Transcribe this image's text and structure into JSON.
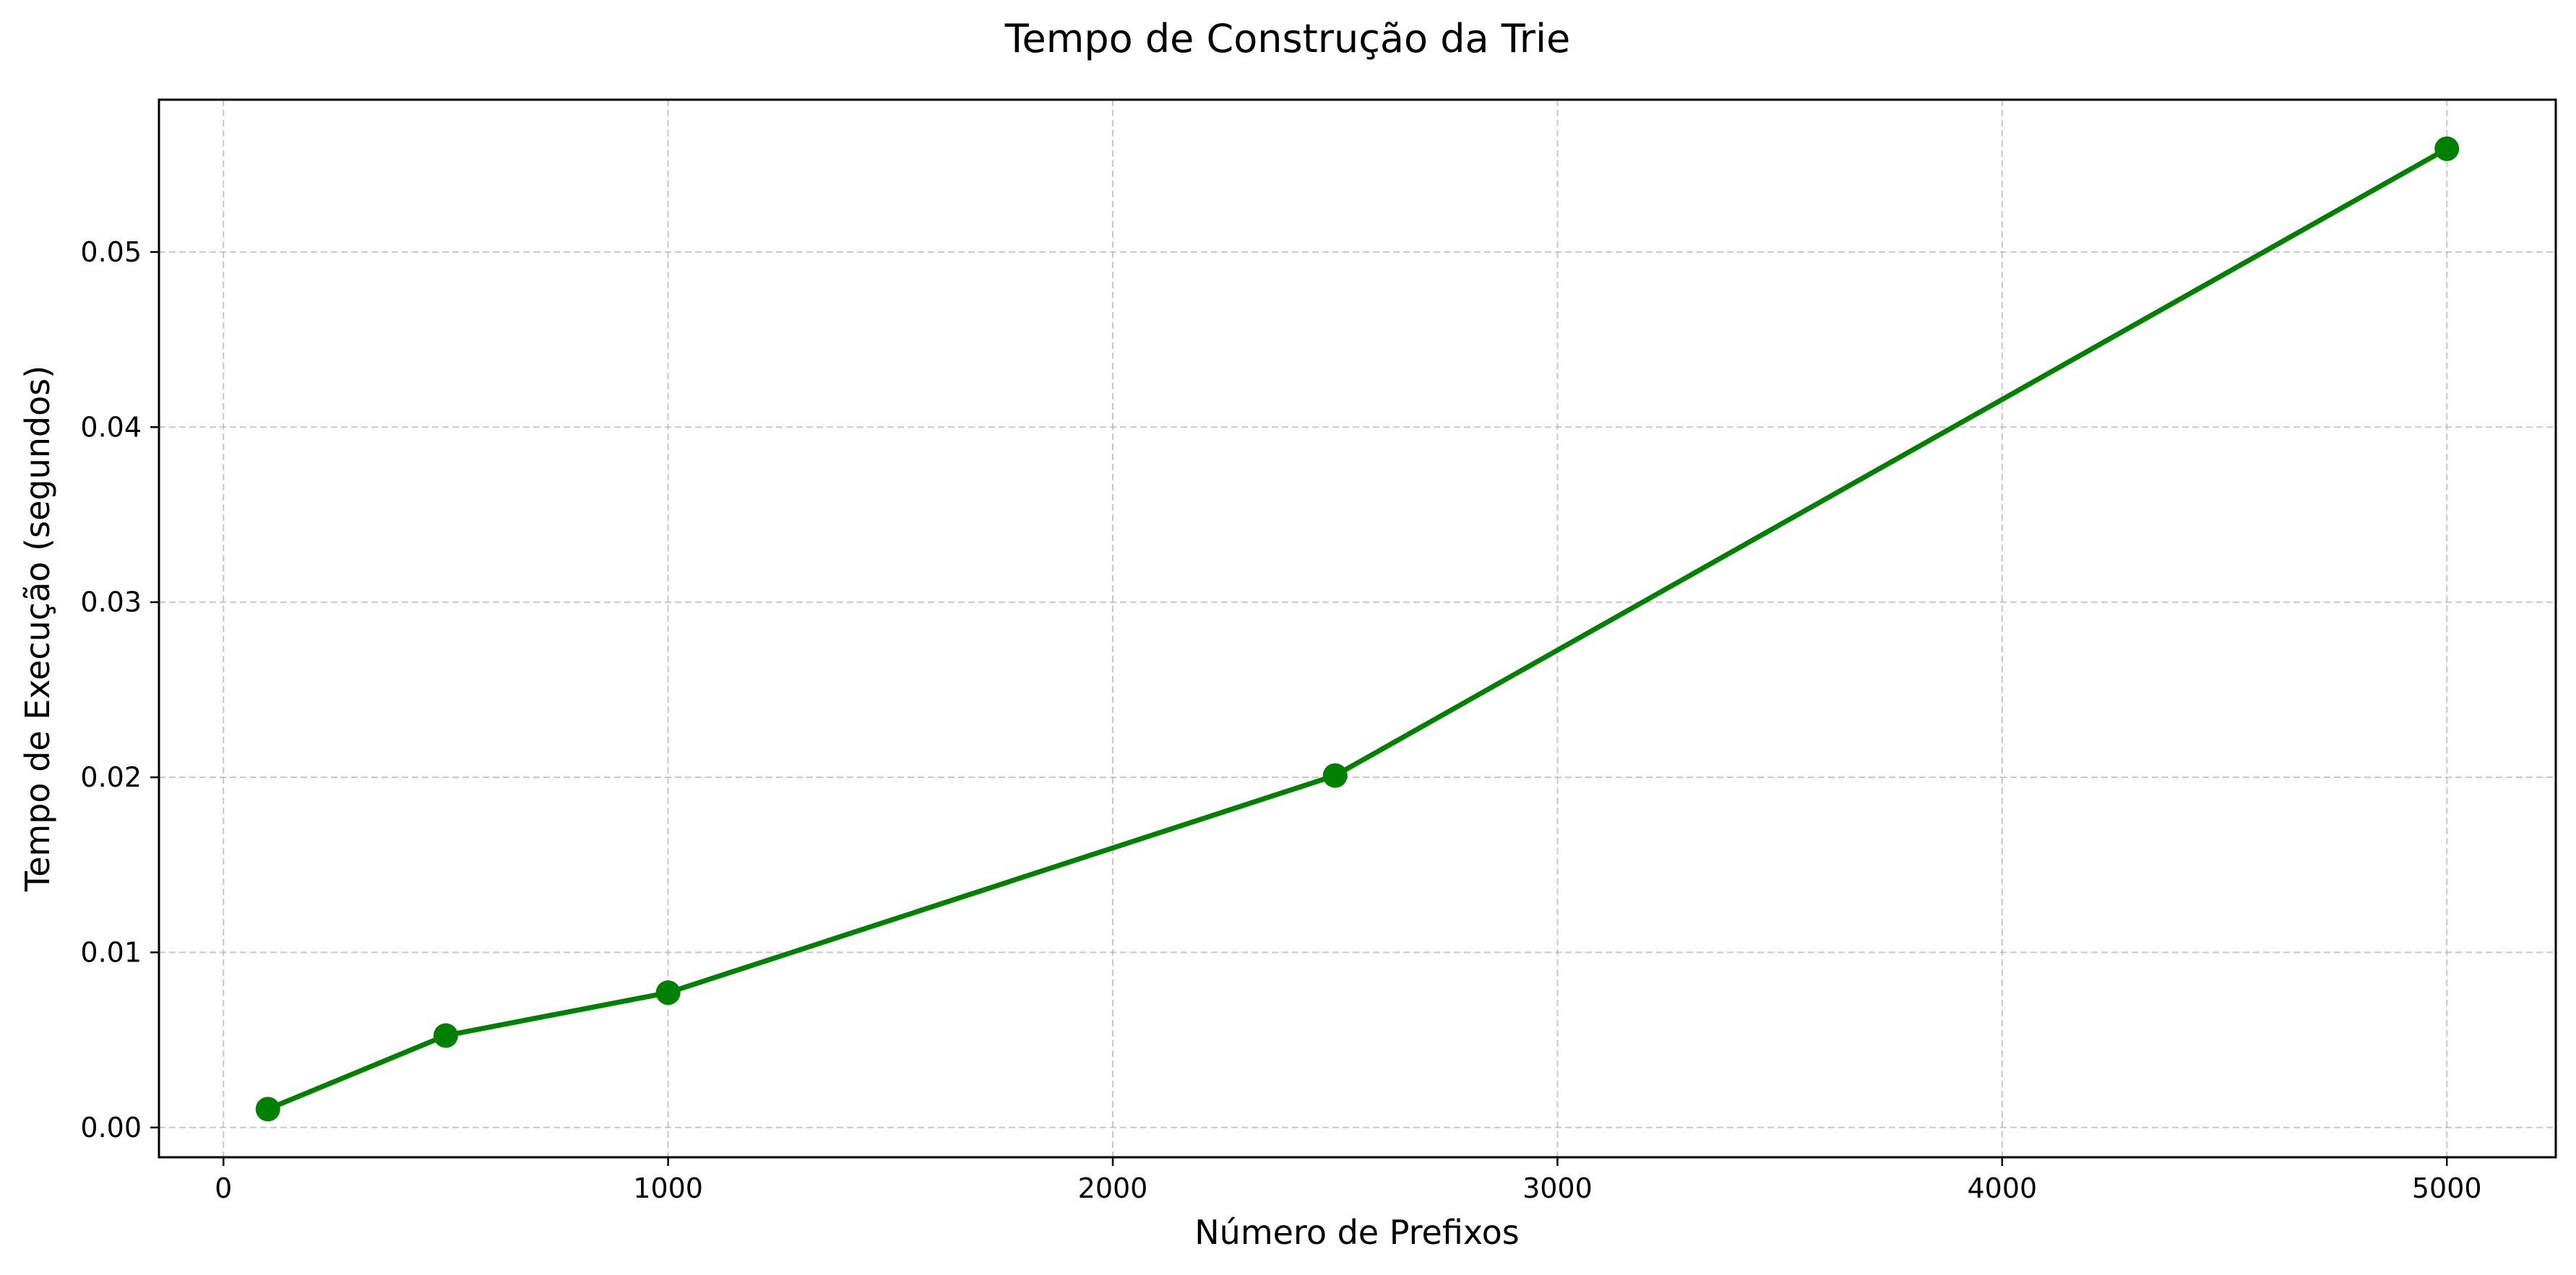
{
  "chart_data": {
    "type": "line",
    "title": "Tempo de Construção da Trie",
    "xlabel": "Número de Prefixos",
    "ylabel": "Tempo de Execução (segundos)",
    "x": [
      100,
      500,
      1000,
      2500,
      5000
    ],
    "series": [
      {
        "values": [
          0.00105,
          0.00525,
          0.0077,
          0.0201,
          0.0559
        ],
        "color": "#008000",
        "marker": "circle"
      }
    ],
    "xlim": [
      -145,
      5245
    ],
    "ylim": [
      -0.0017,
      0.0587
    ],
    "xticks": [
      0,
      1000,
      2000,
      3000,
      4000,
      5000
    ],
    "xtick_labels": [
      "0",
      "1000",
      "2000",
      "3000",
      "4000",
      "5000"
    ],
    "yticks": [
      0.0,
      0.01,
      0.02,
      0.03,
      0.04,
      0.05
    ],
    "ytick_labels": [
      "0.00",
      "0.01",
      "0.02",
      "0.03",
      "0.04",
      "0.05"
    ],
    "grid": true,
    "grid_style": "dashed",
    "legend": false
  }
}
